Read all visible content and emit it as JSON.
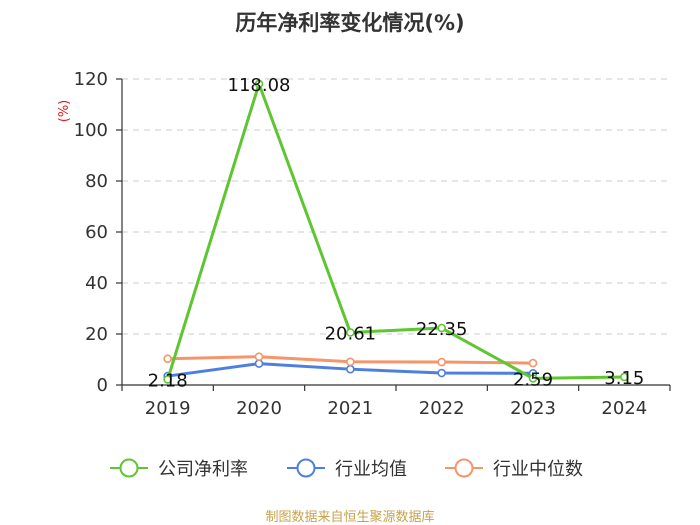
{
  "chart_data": {
    "type": "line",
    "title": "历年净利率变化情况(%)",
    "xlabel": "",
    "ylabel": "(%)",
    "categories": [
      "2019",
      "2020",
      "2021",
      "2022",
      "2023",
      "2024"
    ],
    "ylim": [
      0,
      120
    ],
    "yticks": [
      0,
      20,
      40,
      60,
      80,
      100,
      120
    ],
    "grid": true,
    "legend_position": "bottom",
    "series": [
      {
        "name": "公司净利率",
        "color": "#5dc630",
        "values": [
          2.18,
          118.08,
          20.61,
          22.35,
          2.59,
          3.15
        ],
        "labels": [
          "2.18",
          "118.08",
          "20.61",
          "22.35",
          "2.59",
          "3.15"
        ]
      },
      {
        "name": "行业均值",
        "color": "#4e7fe0",
        "values": [
          3.5,
          8.4,
          6.2,
          4.7,
          4.6,
          null
        ]
      },
      {
        "name": "行业中位数",
        "color": "#f5956a",
        "values": [
          10.3,
          11.1,
          9.1,
          9.0,
          8.6,
          null
        ]
      }
    ],
    "source": "制图数据来自恒生聚源数据库"
  }
}
